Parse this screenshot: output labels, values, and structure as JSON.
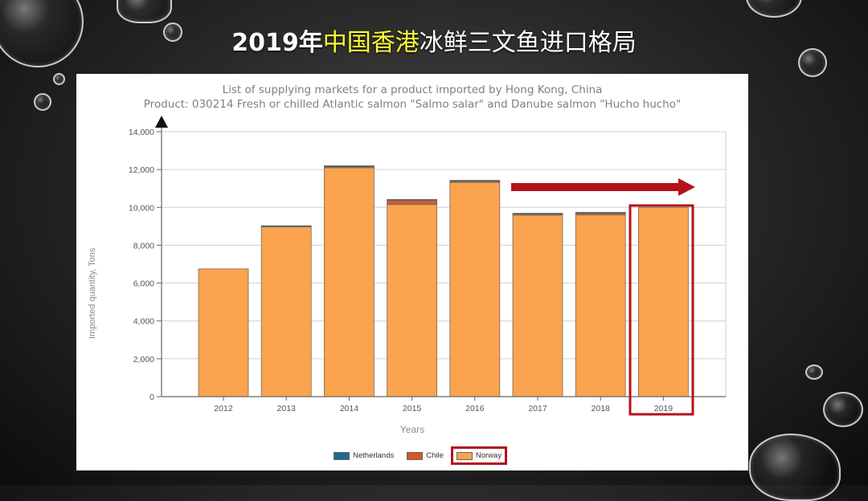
{
  "slide": {
    "title_prefix": "2019年",
    "title_highlight": "中国香港",
    "title_suffix": "冰鲜三文鱼进口格局",
    "highlight_color": "#ffff33"
  },
  "chart": {
    "title_line1": "List of supplying markets for a product imported by Hong Kong, China",
    "title_line2": "Product: 030214 Fresh or chilled Atlantic salmon \"Salmo salar\" and Danube salmon \"Hucho hucho\"",
    "ylabel": "Imported quantity, Tons",
    "xlabel": "Years",
    "legend": [
      {
        "name": "Netherlands",
        "color": "#1f6b8f"
      },
      {
        "name": "Chile",
        "color": "#d4572a"
      },
      {
        "name": "Norway",
        "color": "#fba34e"
      }
    ],
    "annotations": {
      "trend_arrow": "red arrow from 2017 to 2019 indicating stable trend",
      "highlight_box": "2019 bar and Norway legend outlined in red",
      "annotation_color": "#b5121b"
    }
  },
  "chart_data": {
    "type": "bar",
    "stacked": true,
    "title": "List of supplying markets for a product imported by Hong Kong, China",
    "subtitle": "Product: 030214 Fresh or chilled Atlantic salmon \"Salmo salar\" and Danube salmon \"Hucho hucho\"",
    "xlabel": "Years",
    "ylabel": "Imported quantity, Tons",
    "categories": [
      "2012",
      "2013",
      "2014",
      "2015",
      "2016",
      "2017",
      "2018",
      "2019"
    ],
    "series": [
      {
        "name": "Norway",
        "color": "#fba34e",
        "values": [
          6750,
          9000,
          12100,
          10150,
          11350,
          9600,
          9600,
          10000
        ]
      },
      {
        "name": "Chile",
        "color": "#d4572a",
        "values": [
          0,
          0,
          50,
          250,
          30,
          50,
          100,
          0
        ]
      },
      {
        "name": "Netherlands",
        "color": "#1f6b8f",
        "values": [
          0,
          30,
          50,
          20,
          50,
          40,
          40,
          0
        ]
      }
    ],
    "yticks": [
      "0",
      "2,000",
      "4,000",
      "6,000",
      "8,000",
      "10,000",
      "12,000",
      "14,000"
    ],
    "ylim": [
      0,
      14000
    ],
    "grid": true,
    "legend_position": "bottom"
  }
}
